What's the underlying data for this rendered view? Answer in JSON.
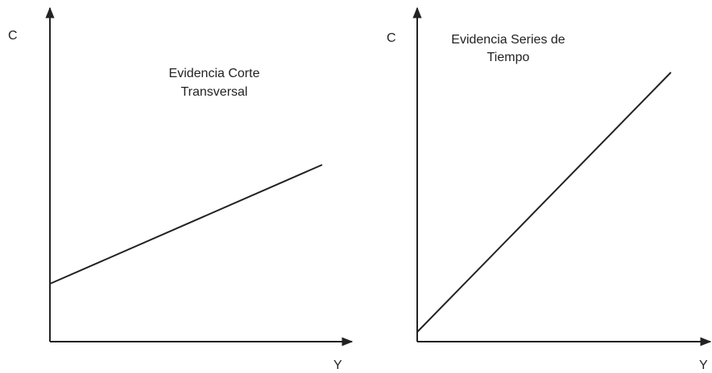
{
  "panels": [
    {
      "y_axis_label": "C",
      "x_axis_label": "Y",
      "annotation": [
        "Evidencia Corte",
        "Transversal"
      ]
    },
    {
      "y_axis_label": "C",
      "x_axis_label": "Y",
      "annotation": [
        "Evidencia Series de",
        "Tiempo"
      ]
    }
  ]
}
